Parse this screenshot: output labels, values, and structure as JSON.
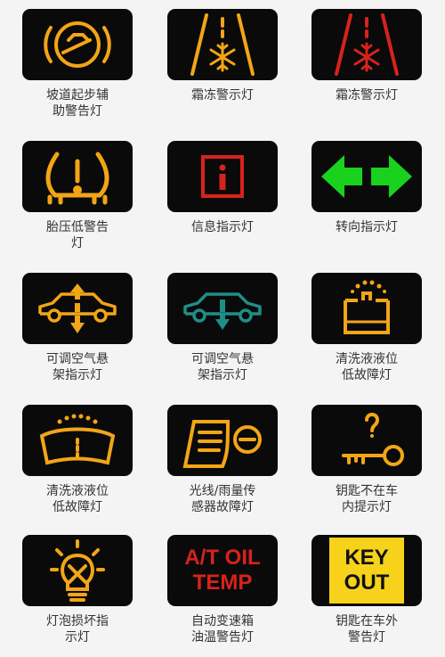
{
  "colors": {
    "amber": "#f3a516",
    "red": "#d8221c",
    "green": "#18d21e",
    "teal": "#1e8f87",
    "yellow_box": "#f6d21a",
    "tile_bg": "#0a0a0a"
  },
  "icons": [
    {
      "id": "hill-start-assist",
      "icon": "hill-start-icon",
      "color": "amber",
      "label": "坡道起步辅\n助警告灯"
    },
    {
      "id": "frost-warning-amber",
      "icon": "snowflake-road-icon",
      "color": "amber",
      "label": "霜冻警示灯"
    },
    {
      "id": "frost-warning-red",
      "icon": "snowflake-road-icon",
      "color": "red",
      "label": "霜冻警示灯"
    },
    {
      "id": "tire-pressure",
      "icon": "tire-pressure-icon",
      "color": "amber",
      "label": "胎压低警告\n灯"
    },
    {
      "id": "info",
      "icon": "info-icon",
      "color": "red",
      "label": "信息指示灯"
    },
    {
      "id": "turn-signal",
      "icon": "turn-signal-icon",
      "color": "green",
      "label": "转向指示灯"
    },
    {
      "id": "air-suspension-up",
      "icon": "car-arrow-updown-icon",
      "color": "amber",
      "label": "可调空气悬\n架指示灯"
    },
    {
      "id": "air-suspension-down",
      "icon": "car-arrow-down-icon",
      "color": "teal",
      "label": "可调空气悬\n架指示灯"
    },
    {
      "id": "washer-fluid-1",
      "icon": "washer-tank-icon",
      "color": "amber",
      "label": "清洗液液位\n低故障灯"
    },
    {
      "id": "washer-fluid-2",
      "icon": "windshield-washer-icon",
      "color": "amber",
      "label": "清洗液液位\n低故障灯"
    },
    {
      "id": "light-rain-sensor",
      "icon": "light-rain-sensor-icon",
      "color": "amber",
      "label": "光线/雨量传\n感器故障灯"
    },
    {
      "id": "key-not-in-car",
      "icon": "key-question-icon",
      "color": "amber",
      "label": "钥匙不在车\n内提示灯"
    },
    {
      "id": "bulb-failure",
      "icon": "bulb-failure-icon",
      "color": "amber",
      "label": "灯泡损坏指\n示灯"
    },
    {
      "id": "at-oil-temp",
      "icon": "at-oil-temp-text-icon",
      "color": "red",
      "text_lines": [
        "A/T OIL",
        "TEMP"
      ],
      "label": "自动变速箱\n油温警告灯"
    },
    {
      "id": "key-out",
      "icon": "key-out-text-icon",
      "color": "yellow_box",
      "text_lines": [
        "KEY",
        "OUT"
      ],
      "label": "钥匙在车外\n警告灯"
    }
  ]
}
